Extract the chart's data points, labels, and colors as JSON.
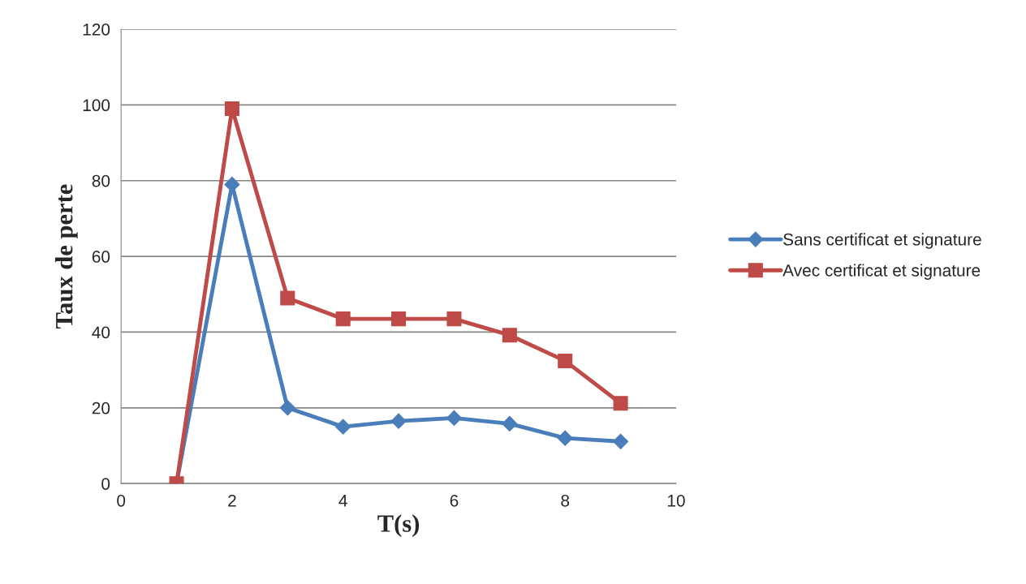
{
  "chart_data": {
    "type": "line",
    "xlabel": "T(s)",
    "ylabel": "Taux de perte",
    "x": [
      1,
      2,
      3,
      4,
      5,
      6,
      7,
      8,
      9
    ],
    "series": [
      {
        "name": "Sans certificat et signature",
        "color": "#4a7ebb",
        "marker": "diamond",
        "values": [
          0,
          79,
          20,
          15,
          16.5,
          17.3,
          15.8,
          12,
          11.1
        ]
      },
      {
        "name": "Avec certificat et signature",
        "color": "#be4b48",
        "marker": "square",
        "values": [
          0,
          99,
          49,
          43.5,
          43.5,
          43.5,
          39.2,
          32.4,
          21.2
        ]
      }
    ],
    "xlim": [
      0,
      10
    ],
    "xticks": [
      0,
      2,
      4,
      6,
      8,
      10
    ],
    "ylim": [
      0,
      120
    ],
    "yticks": [
      0,
      20,
      40,
      60,
      80,
      100,
      120
    ],
    "grid": "y",
    "legend": "right",
    "line_style": "solid"
  }
}
